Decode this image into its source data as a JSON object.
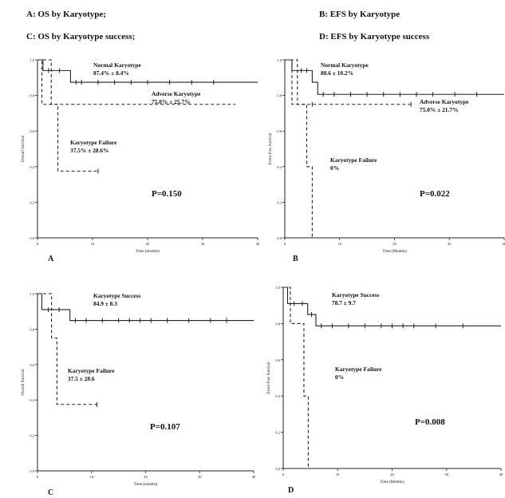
{
  "captions": [
    "A: OS by Karyotype;",
    "B: EFS by Karyotype",
    "C: OS by Karyotype success;",
    "D: EFS by Karyotype success"
  ],
  "chart_data": [
    {
      "id": "A",
      "type": "line",
      "title": "",
      "panel_label": "A",
      "xlabel": "Time (months)",
      "ylabel": "Overall Survival",
      "xlim": [
        0,
        40
      ],
      "ylim": [
        0,
        1
      ],
      "xticks": [
        0,
        10,
        20,
        30,
        40
      ],
      "yticks": [
        0,
        0.2,
        0.4,
        0.6,
        0.8,
        1.0
      ],
      "ytick_labels": [
        "0.0",
        "0.2",
        "0.4",
        "0.6",
        "0.8",
        "1.0"
      ],
      "pvalue": "P=0.150",
      "series": [
        {
          "style": "solid",
          "label_lines": [
            "Normal Karyotype",
            "87.4% ± 8.4%"
          ],
          "steps": [
            [
              0,
              1.0
            ],
            [
              1,
              0.94
            ],
            [
              6,
              0.874
            ],
            [
              40,
              0.874
            ]
          ],
          "censors": [
            [
              2,
              0.94
            ],
            [
              4,
              0.94
            ],
            [
              7,
              0.874
            ],
            [
              8,
              0.874
            ],
            [
              11,
              0.874
            ],
            [
              14,
              0.874
            ],
            [
              17,
              0.874
            ],
            [
              20,
              0.874
            ],
            [
              24,
              0.874
            ],
            [
              28,
              0.874
            ],
            [
              32,
              0.874
            ]
          ]
        },
        {
          "style": "dashed",
          "label_lines": [
            "Adverse Karyotype",
            "75.0% ± 25.7%"
          ],
          "steps": [
            [
              0,
              1.0
            ],
            [
              0.8,
              0.75
            ],
            [
              36,
              0.75
            ]
          ],
          "censors": []
        },
        {
          "style": "dashed",
          "label_lines": [
            "Karyotype Failure",
            "37.5% ± 28.6%"
          ],
          "steps": [
            [
              0,
              1.0
            ],
            [
              2.5,
              0.75
            ],
            [
              3.7,
              0.375
            ],
            [
              11,
              0.375
            ]
          ],
          "censors": [
            [
              11,
              0.375
            ]
          ]
        }
      ]
    },
    {
      "id": "B",
      "type": "line",
      "title": "",
      "panel_label": "B",
      "xlabel": "Time (Months)",
      "ylabel": "Event Free Survival",
      "xlim": [
        0,
        40
      ],
      "ylim": [
        0,
        1
      ],
      "xticks": [
        0,
        10,
        20,
        30,
        40
      ],
      "yticks": [
        0,
        0.2,
        0.4,
        0.6,
        0.8,
        1.0
      ],
      "ytick_labels": [
        "0.0",
        "0.2",
        "0.4",
        "0.6",
        "0.8",
        "1.0"
      ],
      "pvalue": "P=0.022",
      "series": [
        {
          "style": "solid",
          "label_lines": [
            "Normal Karyotype",
            "80.6 ± 10.2%"
          ],
          "steps": [
            [
              0,
              1.0
            ],
            [
              1.3,
              0.94
            ],
            [
              5,
              0.874
            ],
            [
              6,
              0.806
            ],
            [
              40,
              0.806
            ]
          ],
          "censors": [
            [
              3,
              0.94
            ],
            [
              4,
              0.94
            ],
            [
              7,
              0.806
            ],
            [
              9,
              0.806
            ],
            [
              12,
              0.806
            ],
            [
              15,
              0.806
            ],
            [
              18,
              0.806
            ],
            [
              21,
              0.806
            ],
            [
              24,
              0.806
            ],
            [
              27,
              0.806
            ],
            [
              31,
              0.806
            ],
            [
              35,
              0.806
            ]
          ]
        },
        {
          "style": "dashed",
          "label_lines": [
            "Adverse Karyotype",
            "75.0% ± 21.7%"
          ],
          "steps": [
            [
              0,
              1.0
            ],
            [
              1.3,
              0.75
            ],
            [
              23,
              0.75
            ]
          ],
          "censors": [
            [
              5,
              0.75
            ],
            [
              23,
              0.75
            ]
          ]
        },
        {
          "style": "dashed",
          "label_lines": [
            "Karyotype Failure",
            "0%"
          ],
          "steps": [
            [
              0,
              1.0
            ],
            [
              2.3,
              0.75
            ],
            [
              4,
              0.4
            ],
            [
              5,
              0.0
            ]
          ],
          "censors": []
        }
      ]
    },
    {
      "id": "C",
      "type": "line",
      "title": "",
      "panel_label": "C",
      "xlabel": "Time (months)",
      "ylabel": "Overall Survival",
      "xlim": [
        0,
        40
      ],
      "ylim": [
        0,
        1
      ],
      "xticks": [
        0,
        10,
        20,
        30,
        40
      ],
      "yticks": [
        0,
        0.2,
        0.4,
        0.6,
        0.8,
        1.0
      ],
      "ytick_labels": [
        "0.0",
        "0.2",
        "0.4",
        "0.6",
        "0.8",
        "1.0"
      ],
      "pvalue": "P=0.107",
      "series": [
        {
          "style": "solid",
          "label_lines": [
            "Karyotype Success",
            "84.9 ± 8.3"
          ],
          "steps": [
            [
              0,
              1.0
            ],
            [
              0.8,
              0.91
            ],
            [
              6,
              0.849
            ],
            [
              40,
              0.849
            ]
          ],
          "censors": [
            [
              2,
              0.91
            ],
            [
              4,
              0.91
            ],
            [
              7,
              0.849
            ],
            [
              9,
              0.849
            ],
            [
              12,
              0.849
            ],
            [
              15,
              0.849
            ],
            [
              17,
              0.849
            ],
            [
              19,
              0.849
            ],
            [
              21,
              0.849
            ],
            [
              24,
              0.849
            ],
            [
              28,
              0.849
            ],
            [
              32,
              0.849
            ],
            [
              35,
              0.849
            ]
          ]
        },
        {
          "style": "dashed",
          "label_lines": [
            "Karyotype Failure",
            "37.5 ± 28.6"
          ],
          "steps": [
            [
              0,
              1.0
            ],
            [
              2.6,
              0.75
            ],
            [
              3.6,
              0.375
            ],
            [
              11,
              0.375
            ]
          ],
          "censors": [
            [
              11,
              0.375
            ]
          ]
        }
      ]
    },
    {
      "id": "D",
      "type": "line",
      "title": "",
      "panel_label": "D",
      "xlabel": "Time (Months)",
      "ylabel": "Event Free Survival",
      "xlim": [
        0,
        40
      ],
      "ylim": [
        0,
        1
      ],
      "xticks": [
        0,
        10,
        20,
        30,
        40
      ],
      "yticks": [
        0,
        0.2,
        0.4,
        0.6,
        0.8,
        1.0
      ],
      "ytick_labels": [
        "0.0",
        "0.2",
        "0.4",
        "0.6",
        "0.8",
        "1.0"
      ],
      "pvalue": "P=0.008",
      "series": [
        {
          "style": "solid",
          "label_lines": [
            "Karyotype Success",
            "78.7 ± 9.7"
          ],
          "steps": [
            [
              0,
              1.0
            ],
            [
              0.8,
              0.91
            ],
            [
              4.5,
              0.85
            ],
            [
              6,
              0.787
            ],
            [
              40,
              0.787
            ]
          ],
          "censors": [
            [
              2,
              0.91
            ],
            [
              3.5,
              0.91
            ],
            [
              5.2,
              0.85
            ],
            [
              7,
              0.787
            ],
            [
              9,
              0.787
            ],
            [
              12,
              0.787
            ],
            [
              15,
              0.787
            ],
            [
              18,
              0.787
            ],
            [
              20,
              0.787
            ],
            [
              22,
              0.787
            ],
            [
              24,
              0.787
            ],
            [
              28,
              0.787
            ],
            [
              33,
              0.787
            ]
          ]
        },
        {
          "style": "dashed",
          "label_lines": [
            "Karyotype Failure",
            "0%"
          ],
          "steps": [
            [
              0,
              1.0
            ],
            [
              1.3,
              0.8
            ],
            [
              3.5,
              0.8
            ],
            [
              3.8,
              0.4
            ],
            [
              4.6,
              0.0
            ]
          ],
          "censors": []
        }
      ]
    }
  ]
}
